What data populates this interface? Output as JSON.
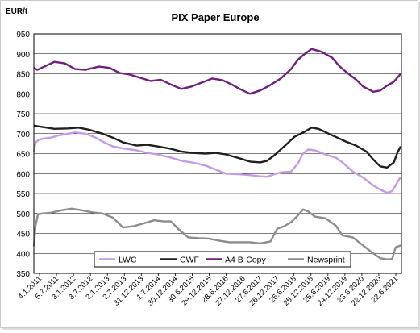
{
  "chart_data": {
    "type": "line",
    "title": "PIX Paper Europe",
    "y_unit_label": "EUR/t",
    "ylim": [
      350,
      950
    ],
    "y_ticks": [
      350,
      400,
      450,
      500,
      550,
      600,
      650,
      700,
      750,
      800,
      850,
      900,
      950
    ],
    "grid": true,
    "legend_position": "bottom",
    "x_tick_labels": [
      "4.1.2011",
      "5.7.2011",
      "3.1.2012",
      "3.7.2012",
      "2.1.2013",
      "2.7.2013",
      "31.12.2013",
      "1.7.2014",
      "30.12.2014",
      "30.6.2015",
      "29.12.2015",
      "28.6.2016",
      "27.12.2016",
      "27.6.2017",
      "26.12.2017",
      "26.6.2018",
      "25.12.2018",
      "25.6.2019",
      "24.12.2019",
      "23.6.2020",
      "22.12.2020",
      "22.6.2021"
    ],
    "x_range": [
      2011.0,
      2021.72
    ],
    "series": [
      {
        "name": "LWC",
        "color": "#c39be8",
        "width": 2.4,
        "x": [
          2011.0,
          2011.05,
          2011.15,
          2011.3,
          2011.5,
          2011.7,
          2012.0,
          2012.2,
          2012.5,
          2012.8,
          2013.0,
          2013.3,
          2013.6,
          2014.0,
          2014.3,
          2014.6,
          2015.0,
          2015.3,
          2015.6,
          2016.0,
          2016.3,
          2016.6,
          2017.0,
          2017.3,
          2017.6,
          2017.8,
          2018.0,
          2018.2,
          2018.5,
          2018.7,
          2018.85,
          2019.0,
          2019.2,
          2019.5,
          2019.8,
          2020.0,
          2020.3,
          2020.6,
          2020.9,
          2021.1,
          2021.3,
          2021.45,
          2021.6,
          2021.7
        ],
        "y": [
          655,
          678,
          685,
          688,
          690,
          695,
          700,
          703,
          700,
          690,
          680,
          668,
          663,
          658,
          652,
          648,
          640,
          632,
          628,
          620,
          610,
          600,
          598,
          596,
          593,
          592,
          598,
          603,
          605,
          625,
          650,
          660,
          658,
          648,
          640,
          628,
          605,
          590,
          570,
          560,
          552,
          556,
          578,
          592
        ]
      },
      {
        "name": "CWF",
        "color": "#1f1f1f",
        "width": 2.4,
        "x": [
          2011.0,
          2011.3,
          2011.6,
          2012.0,
          2012.3,
          2012.6,
          2013.0,
          2013.3,
          2013.6,
          2014.0,
          2014.3,
          2014.6,
          2015.0,
          2015.3,
          2015.6,
          2016.0,
          2016.3,
          2016.6,
          2017.0,
          2017.3,
          2017.6,
          2017.8,
          2018.0,
          2018.3,
          2018.6,
          2018.9,
          2019.1,
          2019.3,
          2019.6,
          2019.9,
          2020.1,
          2020.4,
          2020.7,
          2020.9,
          2021.1,
          2021.3,
          2021.5,
          2021.6,
          2021.7
        ],
        "y": [
          720,
          716,
          712,
          713,
          715,
          710,
          700,
          690,
          678,
          670,
          672,
          668,
          662,
          655,
          652,
          650,
          652,
          648,
          638,
          630,
          628,
          632,
          645,
          668,
          692,
          705,
          715,
          712,
          700,
          688,
          680,
          670,
          655,
          635,
          618,
          615,
          628,
          652,
          668
        ]
      },
      {
        "name": "A4 B-Copy",
        "color": "#6f1f7f",
        "width": 2.4,
        "x": [
          2011.0,
          2011.1,
          2011.3,
          2011.6,
          2011.9,
          2012.2,
          2012.5,
          2012.9,
          2013.2,
          2013.5,
          2013.8,
          2014.1,
          2014.4,
          2014.7,
          2015.0,
          2015.3,
          2015.6,
          2015.9,
          2016.2,
          2016.5,
          2016.8,
          2017.0,
          2017.3,
          2017.6,
          2017.9,
          2018.2,
          2018.5,
          2018.7,
          2018.9,
          2019.1,
          2019.4,
          2019.7,
          2019.9,
          2020.1,
          2020.4,
          2020.6,
          2020.9,
          2021.1,
          2021.3,
          2021.5,
          2021.7
        ],
        "y": [
          865,
          860,
          868,
          880,
          876,
          862,
          860,
          868,
          865,
          852,
          848,
          840,
          832,
          835,
          823,
          812,
          818,
          828,
          838,
          834,
          822,
          812,
          800,
          808,
          822,
          838,
          862,
          885,
          900,
          912,
          905,
          890,
          870,
          855,
          835,
          818,
          805,
          808,
          820,
          830,
          850
        ]
      },
      {
        "name": "Newsprint",
        "color": "#8c8c8c",
        "width": 2.4,
        "x": [
          2011.0,
          2011.05,
          2011.12,
          2011.25,
          2011.5,
          2011.8,
          2012.1,
          2012.4,
          2012.7,
          2013.0,
          2013.3,
          2013.6,
          2013.9,
          2014.2,
          2014.5,
          2014.8,
          2015.0,
          2015.2,
          2015.5,
          2015.8,
          2016.1,
          2016.4,
          2016.7,
          2017.0,
          2017.3,
          2017.6,
          2017.9,
          2018.1,
          2018.3,
          2018.5,
          2018.7,
          2018.85,
          2019.0,
          2019.2,
          2019.5,
          2019.8,
          2020.0,
          2020.3,
          2020.6,
          2020.9,
          2021.1,
          2021.3,
          2021.45,
          2021.55,
          2021.7
        ],
        "y": [
          418,
          470,
          498,
          500,
          502,
          508,
          512,
          508,
          503,
          500,
          490,
          465,
          468,
          475,
          483,
          480,
          480,
          462,
          440,
          438,
          437,
          432,
          428,
          428,
          428,
          425,
          430,
          462,
          468,
          478,
          495,
          510,
          505,
          492,
          488,
          470,
          445,
          440,
          420,
          400,
          388,
          385,
          386,
          415,
          420
        ]
      }
    ]
  }
}
